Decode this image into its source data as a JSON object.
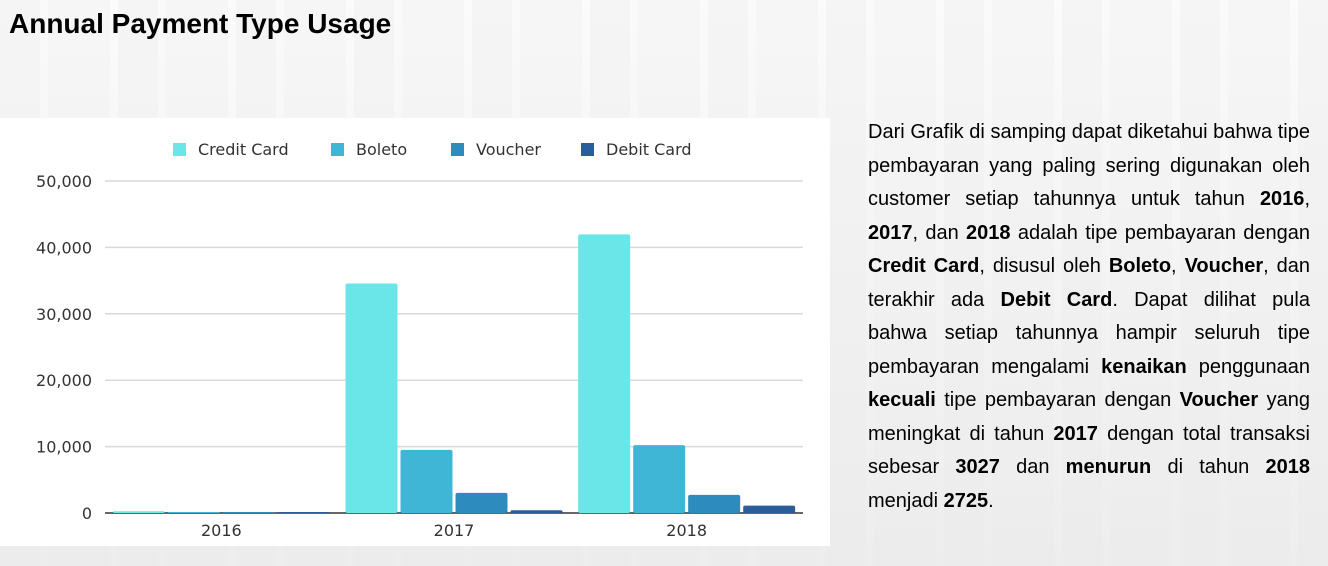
{
  "title": "Annual Payment Type Usage",
  "colors": {
    "credit_card": "#6ae6e8",
    "boleto": "#3fb6d6",
    "voucher": "#2e8bbd",
    "debit_card": "#2b5d9c",
    "grid": "#d9d9d9",
    "axis": "#333333"
  },
  "chart_data": {
    "type": "bar",
    "categories": [
      "2016",
      "2017",
      "2018"
    ],
    "series": [
      {
        "name": "Credit Card",
        "values": [
          258,
          34568,
          41969
        ]
      },
      {
        "name": "Boleto",
        "values": [
          63,
          9508,
          10213
        ]
      },
      {
        "name": "Voucher",
        "values": [
          23,
          3027,
          2725
        ]
      },
      {
        "name": "Debit Card",
        "values": [
          2,
          422,
          1105
        ]
      }
    ],
    "yticks": [
      "0",
      "10,000",
      "20,000",
      "30,000",
      "40,000",
      "50,000"
    ],
    "ylim": [
      0,
      50000
    ],
    "legend_position": "top",
    "grid": true,
    "xlabel": "",
    "ylabel": ""
  },
  "description": {
    "segments": [
      {
        "text": "Dari Grafik di samping dapat diketahui bahwa tipe pembayaran yang paling sering digunakan oleh customer setiap tahunnya untuk tahun ",
        "bold": false
      },
      {
        "text": "2016",
        "bold": true
      },
      {
        "text": ", ",
        "bold": false
      },
      {
        "text": "2017",
        "bold": true
      },
      {
        "text": ", dan ",
        "bold": false
      },
      {
        "text": "2018",
        "bold": true
      },
      {
        "text": " adalah tipe pembayaran dengan ",
        "bold": false
      },
      {
        "text": "Credit Card",
        "bold": true
      },
      {
        "text": ", disusul oleh ",
        "bold": false
      },
      {
        "text": "Boleto",
        "bold": true
      },
      {
        "text": ", ",
        "bold": false
      },
      {
        "text": "Voucher",
        "bold": true
      },
      {
        "text": ", dan terakhir ada ",
        "bold": false
      },
      {
        "text": "Debit Card",
        "bold": true
      },
      {
        "text": ". Dapat dilihat pula bahwa setiap tahunnya hampir seluruh tipe pembayaran mengalami ",
        "bold": false
      },
      {
        "text": "kenaikan",
        "bold": true
      },
      {
        "text": " penggunaan ",
        "bold": false
      },
      {
        "text": "kecuali",
        "bold": true
      },
      {
        "text": " tipe pembayaran dengan ",
        "bold": false
      },
      {
        "text": "Voucher",
        "bold": true
      },
      {
        "text": " yang meningkat di tahun ",
        "bold": false
      },
      {
        "text": "2017",
        "bold": true
      },
      {
        "text": " dengan total transaksi sebesar ",
        "bold": false
      },
      {
        "text": "3027",
        "bold": true
      },
      {
        "text": " dan ",
        "bold": false
      },
      {
        "text": "menurun",
        "bold": true
      },
      {
        "text": " di tahun ",
        "bold": false
      },
      {
        "text": "2018",
        "bold": true
      },
      {
        "text": " menjadi ",
        "bold": false
      },
      {
        "text": "2725",
        "bold": true
      },
      {
        "text": ".",
        "bold": false
      }
    ]
  }
}
